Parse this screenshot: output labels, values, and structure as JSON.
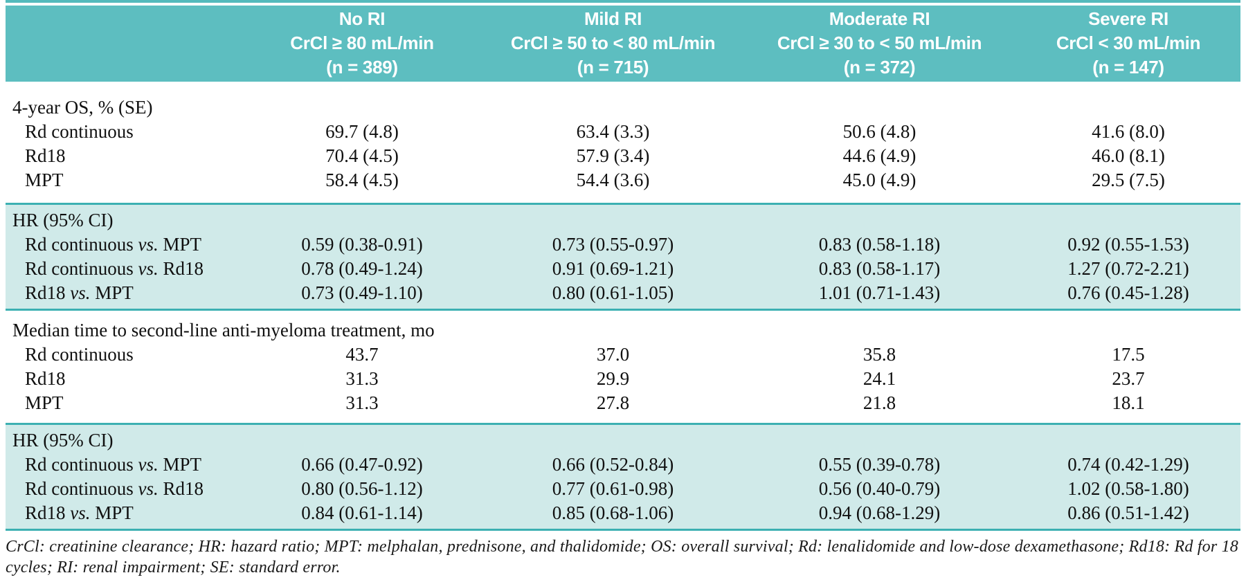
{
  "table": {
    "columns": [
      {
        "title": "No RI",
        "crcl": "CrCl ≥ 80 mL/min",
        "n": "(n = 389)"
      },
      {
        "title": "Mild RI",
        "crcl": "CrCl ≥ 50 to < 80 mL/min",
        "n": "(n = 715)"
      },
      {
        "title": "Moderate RI",
        "crcl": "CrCl ≥ 30 to < 50 mL/min",
        "n": "(n = 372)"
      },
      {
        "title": "Severe RI",
        "crcl": "CrCl < 30 mL/min",
        "n": "(n = 147)"
      }
    ],
    "sections": [
      {
        "header": "4-year OS, % (SE)",
        "shaded": false,
        "rows": [
          {
            "label": "Rd continuous",
            "values": [
              "69.7 (4.8)",
              "63.4 (3.3)",
              "50.6 (4.8)",
              "41.6 (8.0)"
            ]
          },
          {
            "label": "Rd18",
            "values": [
              "70.4 (4.5)",
              "57.9 (3.4)",
              "44.6 (4.9)",
              "46.0 (8.1)"
            ]
          },
          {
            "label": "MPT",
            "values": [
              "58.4 (4.5)",
              "54.4 (3.6)",
              "45.0 (4.9)",
              "29.5 (7.5)"
            ]
          }
        ]
      },
      {
        "header": "HR (95% CI)",
        "shaded": true,
        "rows": [
          {
            "label": [
              "Rd continuous ",
              "vs.",
              " MPT"
            ],
            "values": [
              "0.59 (0.38-0.91)",
              "0.73 (0.55-0.97)",
              "0.83 (0.58-1.18)",
              "0.92 (0.55-1.53)"
            ]
          },
          {
            "label": [
              "Rd continuous ",
              "vs.",
              " Rd18"
            ],
            "values": [
              "0.78 (0.49-1.24)",
              "0.91 (0.69-1.21)",
              "0.83 (0.58-1.17)",
              "1.27 (0.72-2.21)"
            ]
          },
          {
            "label": [
              "Rd18 ",
              "vs.",
              " MPT"
            ],
            "values": [
              "0.73 (0.49-1.10)",
              "0.80 (0.61-1.05)",
              "1.01 (0.71-1.43)",
              "0.76 (0.45-1.28)"
            ]
          }
        ]
      },
      {
        "header": "Median time to second-line anti-myeloma treatment, mo",
        "shaded": false,
        "rows": [
          {
            "label": "Rd continuous",
            "values": [
              "43.7",
              "37.0",
              "35.8",
              "17.5"
            ]
          },
          {
            "label": "Rd18",
            "values": [
              "31.3",
              "29.9",
              "24.1",
              "23.7"
            ]
          },
          {
            "label": "MPT",
            "values": [
              "31.3",
              "27.8",
              "21.8",
              "18.1"
            ]
          }
        ]
      },
      {
        "header": "HR (95% CI)",
        "shaded": true,
        "rows": [
          {
            "label": [
              "Rd continuous ",
              "vs.",
              " MPT"
            ],
            "values": [
              "0.66 (0.47-0.92)",
              "0.66 (0.52-0.84)",
              "0.55 (0.39-0.78)",
              "0.74 (0.42-1.29)"
            ]
          },
          {
            "label": [
              "Rd continuous ",
              "vs.",
              " Rd18"
            ],
            "values": [
              "0.80 (0.56-1.12)",
              "0.77 (0.61-0.98)",
              "0.56 (0.40-0.79)",
              "1.02 (0.58-1.80)"
            ]
          },
          {
            "label": [
              "Rd18 ",
              "vs.",
              " MPT"
            ],
            "values": [
              "0.84 (0.61-1.14)",
              "0.85 (0.68-1.06)",
              "0.94 (0.68-1.29)",
              "0.86 (0.51-1.42)"
            ]
          }
        ]
      }
    ],
    "footnote": "CrCl: creatinine clearance; HR: hazard ratio; MPT: melphalan, prednisone, and thalidomide; OS: overall survival; Rd: lenalidomide and low-dose dexamethasone; Rd18: Rd for 18 cycles; RI: renal impairment; SE: standard error.",
    "colors": {
      "header_teal": "#5dbec0",
      "light_teal": "#d0eae9",
      "rule_teal": "#3cb0b2"
    }
  }
}
